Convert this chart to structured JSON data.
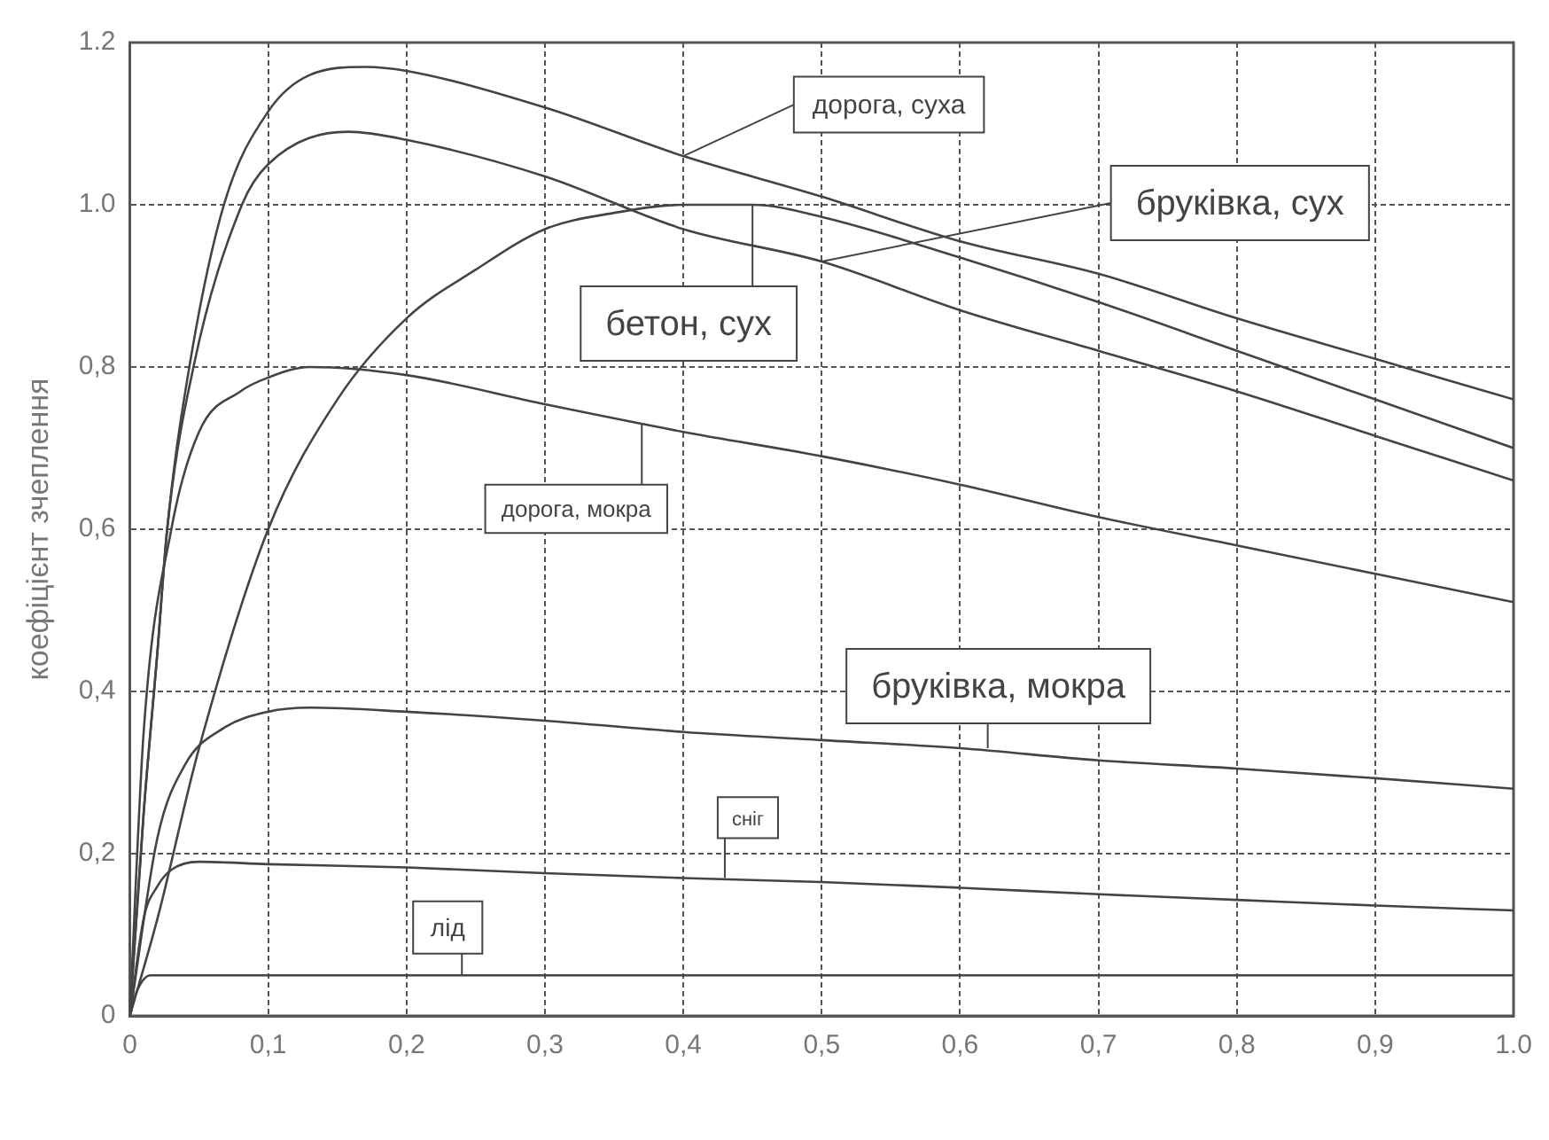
{
  "chart_data": {
    "type": "line",
    "ylabel": "коефіцієнт зчеплення",
    "xlim": [
      0,
      1
    ],
    "ylim": [
      0,
      1.2
    ],
    "xticks": [
      {
        "value": 0,
        "label": "0"
      },
      {
        "value": 0.1,
        "label": "0,1"
      },
      {
        "value": 0.2,
        "label": "0,2"
      },
      {
        "value": 0.3,
        "label": "0,3"
      },
      {
        "value": 0.4,
        "label": "0,4"
      },
      {
        "value": 0.5,
        "label": "0,5"
      },
      {
        "value": 0.6,
        "label": "0,6"
      },
      {
        "value": 0.7,
        "label": "0,7"
      },
      {
        "value": 0.8,
        "label": "0,8"
      },
      {
        "value": 0.9,
        "label": "0,9"
      },
      {
        "value": 1,
        "label": "1.0"
      }
    ],
    "yticks": [
      {
        "value": 0,
        "label": "0"
      },
      {
        "value": 0.2,
        "label": "0,2"
      },
      {
        "value": 0.4,
        "label": "0,4"
      },
      {
        "value": 0.6,
        "label": "0,6"
      },
      {
        "value": 0.8,
        "label": "0,8"
      },
      {
        "value": 1,
        "label": "1.0"
      },
      {
        "value": 1.2,
        "label": "1.2"
      }
    ],
    "grid": true,
    "marker": "none",
    "line_style": "solid",
    "series": [
      {
        "color": "#444444",
        "x": [
          0,
          0.01,
          0.02,
          0.027,
          0.043,
          0.068,
          0.1,
          0.13,
          0.17,
          0.2,
          0.3,
          0.4,
          0.5,
          0.6,
          0.7,
          0.8,
          0.9,
          1
        ],
        "values": [
          0,
          0.25,
          0.45,
          0.6,
          0.8,
          1.0,
          1.115,
          1.16,
          1.17,
          1.165,
          1.12,
          1.06,
          1.01,
          0.955,
          0.915,
          0.86,
          0.81,
          0.76
        ]
      },
      {
        "color": "#444444",
        "x": [
          0,
          0.01,
          0.02,
          0.027,
          0.046,
          0.081,
          0.1,
          0.158,
          0.2,
          0.3,
          0.4,
          0.5,
          0.6,
          0.7,
          0.8,
          0.9,
          1
        ],
        "values": [
          0,
          0.25,
          0.45,
          0.6,
          0.8,
          1.0,
          1.05,
          1.09,
          1.08,
          1.035,
          0.97,
          0.93,
          0.87,
          0.82,
          0.77,
          0.715,
          0.66
        ]
      },
      {
        "color": "#444444",
        "x": [
          0,
          0.02,
          0.05,
          0.1,
          0.15,
          0.2,
          0.25,
          0.3,
          0.35,
          0.4,
          0.45,
          0.5,
          0.6,
          0.7,
          0.8,
          0.9,
          1
        ],
        "values": [
          0,
          0.12,
          0.33,
          0.6,
          0.76,
          0.86,
          0.92,
          0.97,
          0.99,
          1.0,
          1.0,
          0.985,
          0.935,
          0.88,
          0.82,
          0.76,
          0.7
        ]
      },
      {
        "color": "#444444",
        "x": [
          0,
          0.01,
          0.03,
          0.05,
          0.08,
          0.1,
          0.13,
          0.2,
          0.3,
          0.4,
          0.5,
          0.6,
          0.7,
          0.8,
          0.9,
          1
        ],
        "values": [
          0,
          0.35,
          0.6,
          0.72,
          0.77,
          0.787,
          0.8,
          0.79,
          0.754,
          0.72,
          0.69,
          0.655,
          0.615,
          0.58,
          0.545,
          0.51
        ]
      },
      {
        "color": "#444444",
        "x": [
          0,
          0.02,
          0.04,
          0.068,
          0.1,
          0.13,
          0.2,
          0.3,
          0.4,
          0.5,
          0.6,
          0.7,
          0.8,
          0.9,
          1
        ],
        "values": [
          0,
          0.22,
          0.31,
          0.355,
          0.375,
          0.38,
          0.375,
          0.364,
          0.35,
          0.34,
          0.33,
          0.315,
          0.305,
          0.293,
          0.28
        ]
      },
      {
        "color": "#444444",
        "x": [
          0,
          0.01,
          0.02,
          0.03,
          0.05,
          0.1,
          0.2,
          0.3,
          0.4,
          0.5,
          0.6,
          0.7,
          0.8,
          0.9,
          1
        ],
        "values": [
          0,
          0.12,
          0.16,
          0.18,
          0.19,
          0.187,
          0.183,
          0.176,
          0.17,
          0.165,
          0.158,
          0.15,
          0.143,
          0.136,
          0.13
        ]
      },
      {
        "color": "#444444",
        "x": [
          0,
          0.005,
          0.015,
          0.1,
          0.5,
          1
        ],
        "values": [
          0,
          0.03,
          0.05,
          0.05,
          0.05,
          0.05
        ]
      }
    ],
    "annotations": [
      {
        "text": "дорога, суха",
        "x": 0.4,
        "y": 1.06
      },
      {
        "text": "бруківка, сух",
        "x": 0.5,
        "y": 0.93
      },
      {
        "text": "бетон, сух",
        "x": 0.45,
        "y": 1.0
      },
      {
        "text": "дорога, мокра",
        "x": 0.37,
        "y": 0.73
      },
      {
        "text": "бруківка, мокра",
        "x": 0.62,
        "y": 0.33
      },
      {
        "text": "сніг",
        "x": 0.43,
        "y": 0.17
      },
      {
        "text": "лід",
        "x": 0.24,
        "y": 0.05
      }
    ]
  }
}
